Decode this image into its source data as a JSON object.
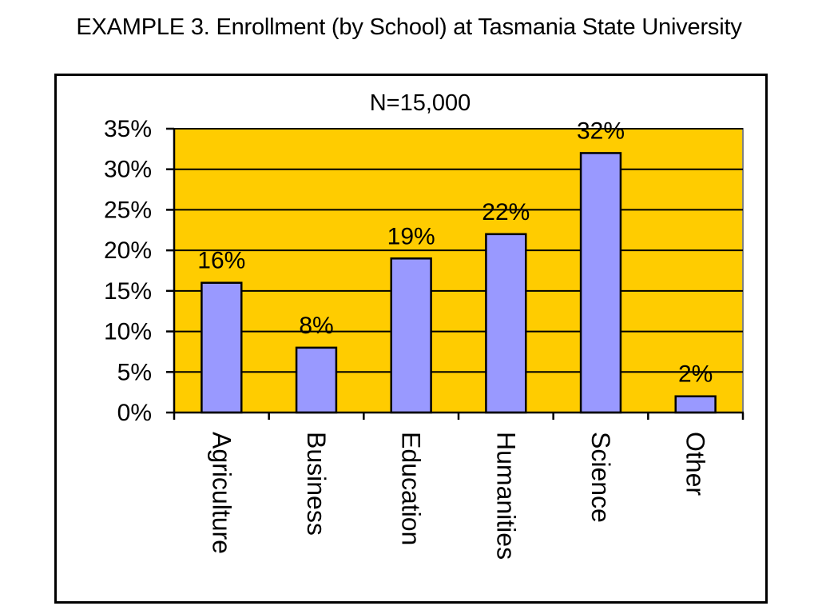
{
  "page": {
    "title": "EXAMPLE 3.  Enrollment (by School) at Tasmania State University"
  },
  "chart_data": {
    "type": "bar",
    "title": "",
    "annotation": "N=15,000",
    "categories": [
      "Agriculture",
      "Business",
      "Education",
      "Humanities",
      "Science",
      "Other"
    ],
    "values": [
      16,
      8,
      19,
      22,
      32,
      2
    ],
    "data_labels": [
      "16%",
      "8%",
      "19%",
      "22%",
      "32%",
      "2%"
    ],
    "xlabel": "",
    "ylabel": "",
    "ylim": [
      0,
      35
    ],
    "yticks": [
      0,
      5,
      10,
      15,
      20,
      25,
      30,
      35
    ],
    "ytick_labels": [
      "0%",
      "5%",
      "10%",
      "15%",
      "20%",
      "25%",
      "30%",
      "35%"
    ],
    "grid": true,
    "legend": "none",
    "colors": {
      "plot_background": "#FFCC00",
      "bar_fill": "#9999FF",
      "bar_stroke": "#000000",
      "gridline": "#000000"
    }
  }
}
